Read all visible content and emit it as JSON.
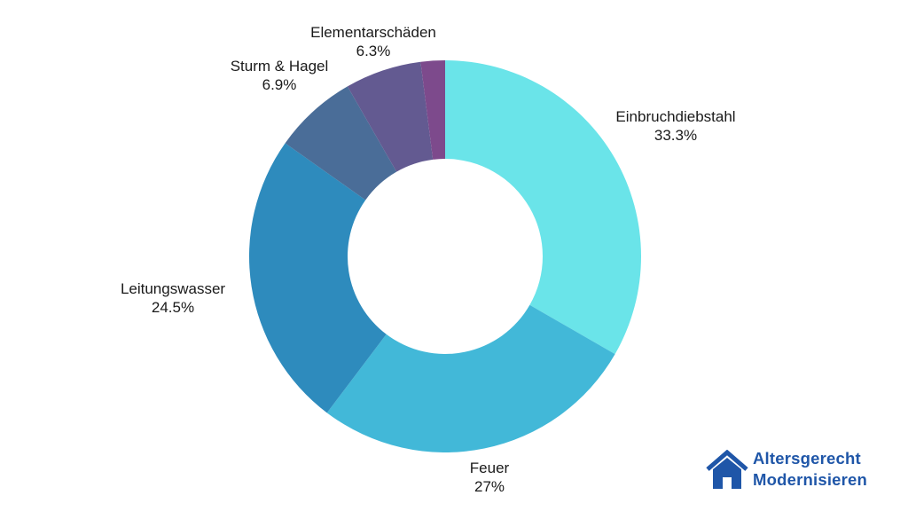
{
  "chart_data": {
    "type": "pie",
    "donut": true,
    "start": "top",
    "direction": "clockwise",
    "slices": [
      {
        "label": "Einbruchdiebstahl",
        "value": 33.3,
        "value_label": "33.3%",
        "color": "#6ae4e9"
      },
      {
        "label": "Feuer",
        "value": 27,
        "value_label": "27%",
        "color": "#42b8d8"
      },
      {
        "label": "Leitungswasser",
        "value": 24.5,
        "value_label": "24.5%",
        "color": "#2e8bbd"
      },
      {
        "label": "Sturm & Hagel",
        "value": 6.9,
        "value_label": "6.9%",
        "color": "#4a6d98"
      },
      {
        "label": "Elementarschäden",
        "value": 6.3,
        "value_label": "6.3%",
        "color": "#635a91"
      },
      {
        "label": "",
        "value": 2.0,
        "value_label": "",
        "color": "#7d4a8c"
      }
    ]
  },
  "logo": {
    "line1": "Altersgerecht",
    "line2": "Modernisieren",
    "color": "#1f56a8",
    "icon": "house-icon"
  }
}
